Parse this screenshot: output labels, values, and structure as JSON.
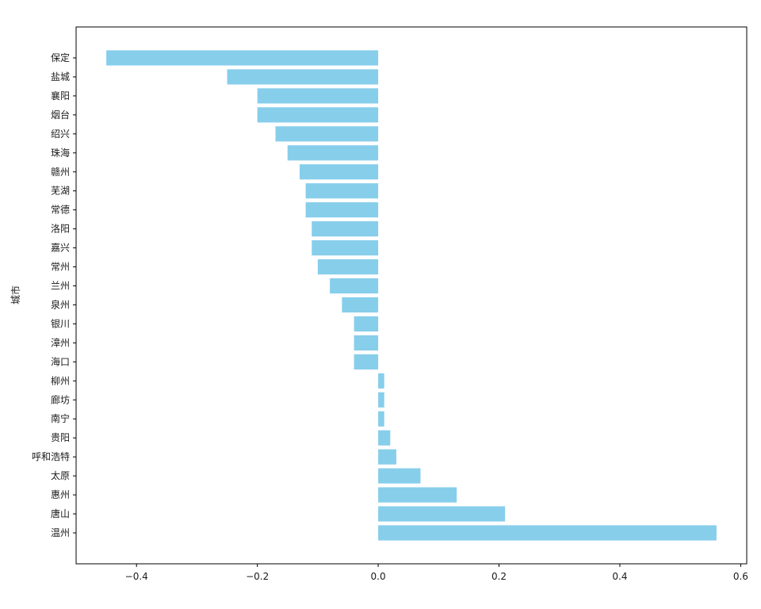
{
  "chart_data": {
    "type": "bar",
    "orientation": "horizontal",
    "title": "",
    "xlabel": "",
    "ylabel": "城市",
    "xlim": [
      -0.5,
      0.61
    ],
    "xticks": [
      "−0.4",
      "−0.2",
      "0.0",
      "0.2",
      "0.4",
      "0.6"
    ],
    "xtick_values": [
      -0.4,
      -0.2,
      0.0,
      0.2,
      0.4,
      0.6
    ],
    "bar_color": "#87CEEB",
    "grid": false,
    "categories": [
      "保定",
      "盐城",
      "襄阳",
      "烟台",
      "绍兴",
      "珠海",
      "赣州",
      "芜湖",
      "常德",
      "洛阳",
      "嘉兴",
      "常州",
      "兰州",
      "泉州",
      "银川",
      "漳州",
      "海口",
      "柳州",
      "廊坊",
      "南宁",
      "贵阳",
      "呼和浩特",
      "太原",
      "惠州",
      "唐山",
      "温州"
    ],
    "values": [
      -0.45,
      -0.25,
      -0.2,
      -0.2,
      -0.17,
      -0.15,
      -0.13,
      -0.12,
      -0.12,
      -0.11,
      -0.11,
      -0.1,
      -0.08,
      -0.06,
      -0.04,
      -0.04,
      -0.04,
      0.01,
      0.01,
      0.01,
      0.02,
      0.03,
      0.07,
      0.13,
      0.21,
      0.56
    ]
  }
}
